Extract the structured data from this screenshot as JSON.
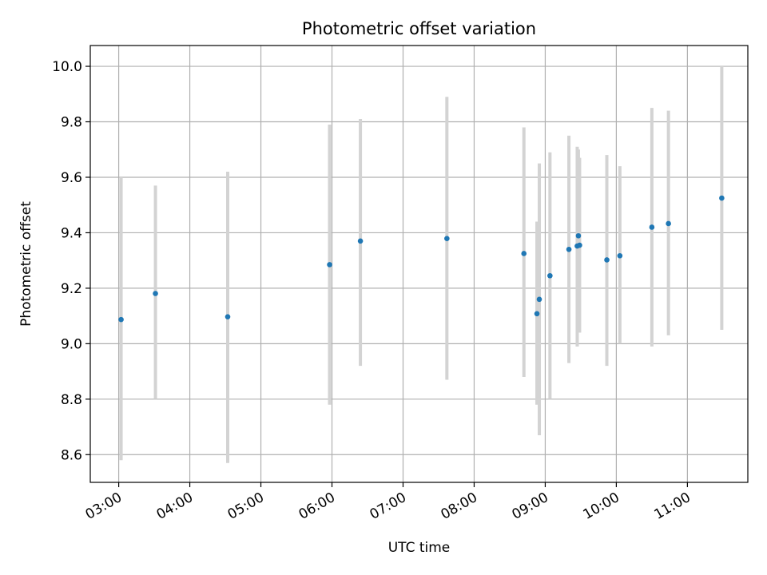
{
  "chart_data": {
    "type": "scatter",
    "title": "Photometric offset variation",
    "xlabel": "UTC time",
    "ylabel": "Photometric offset",
    "x_unit": "UTC hours (hh:mm)",
    "xlim": [
      "02:36",
      "11:51"
    ],
    "ylim": [
      8.5,
      10.075
    ],
    "x_ticks": [
      "03:00",
      "04:00",
      "05:00",
      "06:00",
      "07:00",
      "08:00",
      "09:00",
      "10:00",
      "11:00"
    ],
    "y_ticks": [
      "8.6",
      "8.8",
      "9.0",
      "9.2",
      "9.4",
      "9.6",
      "9.8",
      "10.0"
    ],
    "grid": true,
    "legend": "none",
    "point_color": "#1f77b4",
    "errorbar_color": "#d3d3d3",
    "points": [
      {
        "time": "03:02",
        "y": 9.087,
        "ylow": 8.58,
        "yhigh": 9.6
      },
      {
        "time": "03:31",
        "y": 9.181,
        "ylow": 8.8,
        "yhigh": 9.57
      },
      {
        "time": "04:32",
        "y": 9.097,
        "ylow": 8.57,
        "yhigh": 9.62
      },
      {
        "time": "05:58",
        "y": 9.285,
        "ylow": 8.78,
        "yhigh": 9.79
      },
      {
        "time": "06:24",
        "y": 9.37,
        "ylow": 8.92,
        "yhigh": 9.81
      },
      {
        "time": "07:37",
        "y": 9.379,
        "ylow": 8.87,
        "yhigh": 9.89
      },
      {
        "time": "08:42",
        "y": 9.325,
        "ylow": 8.88,
        "yhigh": 9.78
      },
      {
        "time": "08:53",
        "y": 9.108,
        "ylow": 8.78,
        "yhigh": 9.44
      },
      {
        "time": "08:55",
        "y": 9.16,
        "ylow": 8.67,
        "yhigh": 9.65
      },
      {
        "time": "09:04",
        "y": 9.245,
        "ylow": 8.8,
        "yhigh": 9.69
      },
      {
        "time": "09:20",
        "y": 9.34,
        "ylow": 8.93,
        "yhigh": 9.75
      },
      {
        "time": "09:27",
        "y": 9.352,
        "ylow": 8.99,
        "yhigh": 9.71
      },
      {
        "time": "09:28",
        "y": 9.389,
        "ylow": 9.06,
        "yhigh": 9.7
      },
      {
        "time": "09:29",
        "y": 9.355,
        "ylow": 9.04,
        "yhigh": 9.67
      },
      {
        "time": "09:52",
        "y": 9.302,
        "ylow": 8.92,
        "yhigh": 9.68
      },
      {
        "time": "10:03",
        "y": 9.317,
        "ylow": 9.0,
        "yhigh": 9.64
      },
      {
        "time": "10:30",
        "y": 9.42,
        "ylow": 8.99,
        "yhigh": 9.85
      },
      {
        "time": "10:44",
        "y": 9.433,
        "ylow": 9.03,
        "yhigh": 9.84
      },
      {
        "time": "11:29",
        "y": 9.525,
        "ylow": 9.05,
        "yhigh": 10.0
      }
    ]
  }
}
